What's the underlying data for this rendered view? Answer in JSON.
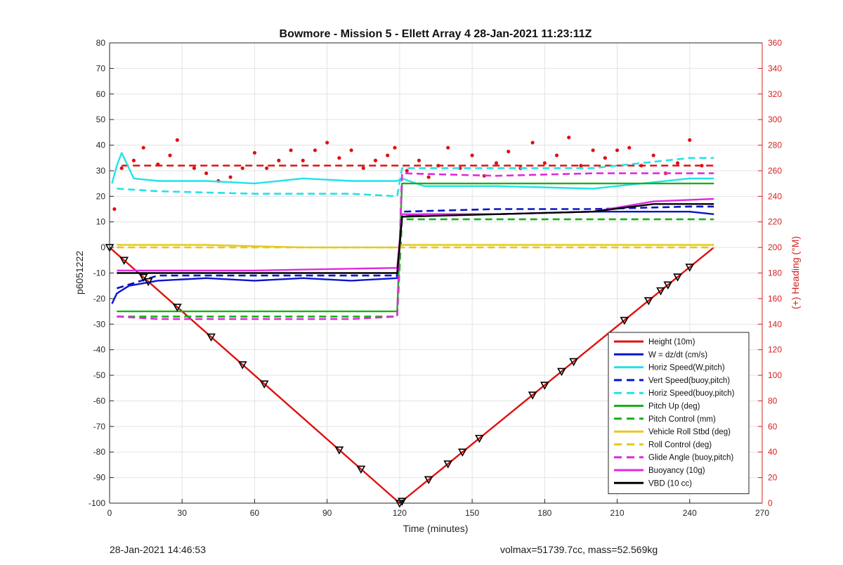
{
  "chart_data": {
    "type": "line",
    "title": "Bowmore - Mission 5 - Ellett Array 4 28-Jan-2021 11:23:11Z",
    "xlabel": "Time (minutes)",
    "ylabel": "p6051222",
    "y2label": "(+) Heading (°M)",
    "xlim": [
      0,
      270
    ],
    "ylim": [
      -100,
      80
    ],
    "y2lim": [
      0,
      360
    ],
    "xticks": [
      "0",
      "30",
      "60",
      "90",
      "120",
      "150",
      "180",
      "210",
      "240",
      "270"
    ],
    "yticks": [
      "80",
      "70",
      "60",
      "50",
      "40",
      "30",
      "20",
      "10",
      "0",
      "-10",
      "-20",
      "-30",
      "-40",
      "-50",
      "-60",
      "-70",
      "-80",
      "-90",
      "-100"
    ],
    "y2ticks": [
      "360",
      "340",
      "320",
      "300",
      "280",
      "260",
      "240",
      "220",
      "200",
      "180",
      "160",
      "140",
      "120",
      "100",
      "80",
      "60",
      "40",
      "20",
      "0"
    ],
    "grid": true,
    "legend_position": "bottom-right",
    "series": [
      {
        "name": "Height (10m)",
        "color": "#e01010",
        "style": "solid",
        "x": [
          0,
          120,
          250
        ],
        "y": [
          0,
          -100,
          0
        ]
      },
      {
        "name": "W = dz/dt (cm/s)",
        "color": "#0a14c8",
        "style": "solid",
        "x": [
          1,
          3,
          8,
          20,
          40,
          60,
          80,
          100,
          119,
          121,
          130,
          160,
          200,
          240,
          250
        ],
        "y": [
          -22,
          -18,
          -15,
          -13,
          -12,
          -13,
          -12,
          -13,
          -12,
          12,
          13,
          13,
          14,
          14,
          13
        ]
      },
      {
        "name": "Horiz Speed(W,pitch)",
        "color": "#22e2e8",
        "style": "solid",
        "x": [
          1,
          3,
          5,
          10,
          20,
          40,
          60,
          80,
          100,
          119,
          121,
          130,
          160,
          200,
          240,
          250
        ],
        "y": [
          25,
          32,
          37,
          27,
          26,
          26,
          25,
          27,
          26,
          26,
          27,
          24,
          24,
          23,
          27,
          27
        ]
      },
      {
        "name": "Vert Speed(buoy,pitch)",
        "color": "#0a14c8",
        "style": "dashed",
        "x": [
          3,
          20,
          60,
          100,
          119,
          121,
          160,
          200,
          240,
          250
        ],
        "y": [
          -16,
          -11,
          -11,
          -11,
          -11,
          14,
          15,
          15,
          16,
          16
        ]
      },
      {
        "name": "Horiz Speed(buoy,pitch)",
        "color": "#22e2e8",
        "style": "dashed",
        "x": [
          3,
          20,
          60,
          100,
          119,
          121,
          160,
          200,
          240,
          250
        ],
        "y": [
          23,
          22,
          21,
          21,
          20,
          31,
          31,
          31,
          35,
          35
        ]
      },
      {
        "name": "Pitch Up (deg)",
        "color": "#18b018",
        "style": "solid",
        "x": [
          3,
          20,
          60,
          100,
          119,
          121,
          160,
          200,
          240,
          250
        ],
        "y": [
          -25,
          -25,
          -25,
          -25,
          -25,
          25,
          25,
          25,
          25,
          25
        ]
      },
      {
        "name": "Pitch Control (mm)",
        "color": "#18b018",
        "style": "dashed",
        "x": [
          3,
          20,
          60,
          100,
          119,
          121,
          160,
          200,
          240,
          250
        ],
        "y": [
          -27,
          -27,
          -27,
          -27,
          -27,
          11,
          11,
          11,
          11,
          11
        ]
      },
      {
        "name": "Vehicle Roll Stbd (deg)",
        "color": "#e6c820",
        "style": "solid",
        "x": [
          3,
          40,
          80,
          119,
          121,
          160,
          200,
          240,
          250
        ],
        "y": [
          1,
          1,
          0,
          0,
          1,
          1,
          1,
          1,
          1
        ]
      },
      {
        "name": "Roll Control (deg)",
        "color": "#e6c820",
        "style": "dashed",
        "x": [
          3,
          60,
          119,
          121,
          200,
          250
        ],
        "y": [
          0,
          0,
          0,
          0,
          0,
          0
        ]
      },
      {
        "name": "Glide Angle (buoy,pitch)",
        "color": "#e02ae0",
        "style": "dashed",
        "x": [
          3,
          20,
          60,
          100,
          119,
          121,
          160,
          200,
          240,
          250
        ],
        "y": [
          -27,
          -28,
          -28,
          -28,
          -27,
          29,
          28,
          29,
          29,
          29
        ]
      },
      {
        "name": "Buoyancy (10g)",
        "color": "#e02ae0",
        "style": "solid",
        "x": [
          3,
          60,
          119,
          121,
          160,
          200,
          225,
          250
        ],
        "y": [
          -9,
          -9,
          -8,
          13,
          13,
          14,
          18,
          19
        ]
      },
      {
        "name": "VBD (10 cc)",
        "color": "#000000",
        "style": "solid",
        "x": [
          3,
          60,
          119,
          121,
          160,
          200,
          225,
          250
        ],
        "y": [
          -10,
          -10,
          -10,
          12,
          13,
          14,
          17,
          17
        ]
      }
    ],
    "heading": {
      "color": "#e01010",
      "reference": 264,
      "x": [
        2,
        5,
        10,
        14,
        20,
        25,
        28,
        35,
        40,
        45,
        50,
        55,
        60,
        65,
        70,
        75,
        80,
        85,
        90,
        95,
        100,
        105,
        110,
        115,
        118,
        123,
        128,
        132,
        136,
        140,
        145,
        150,
        155,
        160,
        165,
        170,
        175,
        180,
        185,
        190,
        195,
        200,
        205,
        210,
        215,
        220,
        225,
        230,
        235,
        240,
        245
      ],
      "y": [
        230,
        262,
        268,
        278,
        265,
        272,
        284,
        262,
        258,
        252,
        255,
        262,
        274,
        262,
        268,
        276,
        268,
        276,
        282,
        270,
        276,
        262,
        268,
        272,
        278,
        260,
        268,
        255,
        264,
        278,
        262,
        272,
        256,
        266,
        275,
        262,
        282,
        266,
        272,
        286,
        264,
        276,
        270,
        276,
        278,
        264,
        272,
        258,
        266,
        284,
        264
      ]
    },
    "markers": {
      "x": [
        0,
        6,
        14,
        16,
        28,
        42,
        55,
        64,
        95,
        104,
        120,
        121,
        132,
        140,
        146,
        153,
        175,
        180,
        187,
        192,
        213,
        223,
        228,
        231,
        235,
        240
      ]
    }
  },
  "footer": {
    "left": "28-Jan-2021 14:46:53",
    "right": "volmax=51739.7cc, mass=52.569kg"
  }
}
